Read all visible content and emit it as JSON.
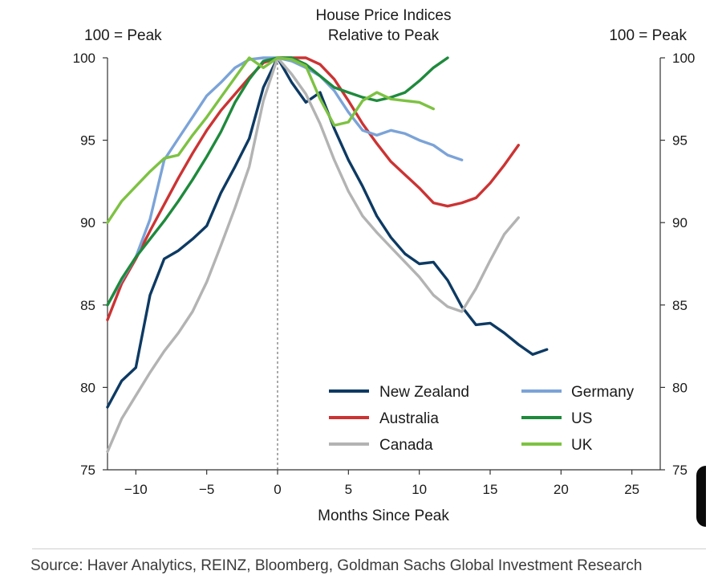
{
  "chart_data": {
    "type": "line",
    "title": [
      "House Price Indices",
      "Relative to Peak"
    ],
    "left_axis_label": "100 = Peak",
    "right_axis_label": "100 = Peak",
    "xlabel": "Months Since Peak",
    "xlim": [
      -12,
      27
    ],
    "ylim": [
      75,
      100
    ],
    "x_ticks": [
      -10,
      -5,
      0,
      5,
      10,
      15,
      20,
      25
    ],
    "x_tick_labels": [
      "−10",
      "−5",
      "0",
      "5",
      "10",
      "15",
      "20",
      "25"
    ],
    "y_ticks": [
      75,
      80,
      85,
      90,
      95,
      100
    ],
    "y_tick_labels": [
      "75",
      "80",
      "85",
      "90",
      "95",
      "100"
    ],
    "reference_line_x": 0,
    "legend_position": "lower-right",
    "series": [
      {
        "name": "New Zealand",
        "color": "#0d3a63",
        "x": [
          -12,
          -11,
          -10,
          -9,
          -8,
          -7,
          -6,
          -5,
          -4,
          -3,
          -2,
          -1,
          0,
          1,
          2,
          3,
          4,
          5,
          6,
          7,
          8,
          9,
          10,
          11,
          12,
          13,
          14,
          15,
          16,
          17,
          18,
          19
        ],
        "y": [
          78.8,
          80.4,
          81.2,
          85.6,
          87.8,
          88.3,
          89.0,
          89.8,
          91.8,
          93.4,
          95.1,
          98.2,
          100.0,
          98.5,
          97.3,
          97.9,
          95.7,
          93.8,
          92.2,
          90.4,
          89.1,
          88.1,
          87.5,
          87.6,
          86.5,
          84.9,
          83.8,
          83.9,
          83.3,
          82.6,
          82.0,
          82.3
        ]
      },
      {
        "name": "Australia",
        "color": "#cc3333",
        "x": [
          -12,
          -11,
          -10,
          -9,
          -8,
          -7,
          -6,
          -5,
          -4,
          -3,
          -2,
          -1,
          0,
          1,
          2,
          3,
          4,
          5,
          6,
          7,
          8,
          9,
          10,
          11,
          12,
          13,
          14,
          15,
          16,
          17
        ],
        "y": [
          84.1,
          86.3,
          87.8,
          89.5,
          91.1,
          92.7,
          94.2,
          95.6,
          96.8,
          97.8,
          98.8,
          99.7,
          100.0,
          100.0,
          100.0,
          99.6,
          98.7,
          97.4,
          96.0,
          94.8,
          93.7,
          92.9,
          92.1,
          91.2,
          91.0,
          91.2,
          91.5,
          92.4,
          93.5,
          94.7
        ]
      },
      {
        "name": "Canada",
        "color": "#b3b3b3",
        "x": [
          -12,
          -11,
          -10,
          -9,
          -8,
          -7,
          -6,
          -5,
          -4,
          -3,
          -2,
          -1,
          0,
          1,
          2,
          3,
          4,
          5,
          6,
          7,
          8,
          9,
          10,
          11,
          12,
          13,
          14,
          15,
          16,
          17
        ],
        "y": [
          76.1,
          78.1,
          79.5,
          80.9,
          82.2,
          83.3,
          84.6,
          86.4,
          88.6,
          90.9,
          93.4,
          97.4,
          100.0,
          99.0,
          97.8,
          96.0,
          93.8,
          91.9,
          90.4,
          89.4,
          88.5,
          87.6,
          86.7,
          85.6,
          84.9,
          84.6,
          86.0,
          87.7,
          89.3,
          90.3
        ]
      },
      {
        "name": "Germany",
        "color": "#7ba3d8",
        "x": [
          -12,
          -11,
          -10,
          -9,
          -8,
          -7,
          -6,
          -5,
          -4,
          -3,
          -2,
          -1,
          0,
          1,
          2,
          3,
          4,
          5,
          6,
          7,
          8,
          9,
          10,
          11,
          12,
          13
        ],
        "y": [
          85.0,
          86.5,
          87.9,
          90.2,
          93.8,
          95.1,
          96.4,
          97.7,
          98.5,
          99.4,
          99.9,
          100.0,
          100.0,
          99.8,
          99.4,
          98.9,
          98.0,
          96.7,
          95.6,
          95.3,
          95.6,
          95.4,
          95.0,
          94.7,
          94.1,
          93.8
        ]
      },
      {
        "name": "US",
        "color": "#1e8a3c",
        "x": [
          -12,
          -11,
          -10,
          -9,
          -8,
          -7,
          -6,
          -5,
          -4,
          -3,
          -2,
          -1,
          0,
          1,
          2,
          3,
          4,
          5,
          6,
          7,
          8,
          9,
          10,
          11,
          12
        ],
        "y": [
          85.0,
          86.6,
          87.9,
          89.0,
          90.1,
          91.3,
          92.6,
          94.0,
          95.5,
          97.3,
          98.7,
          99.8,
          100.0,
          100.0,
          99.6,
          98.9,
          98.2,
          97.9,
          97.6,
          97.4,
          97.6,
          97.9,
          98.6,
          99.4,
          100.0
        ]
      },
      {
        "name": "UK",
        "color": "#7dc242",
        "x": [
          -12,
          -11,
          -10,
          -9,
          -8,
          -7,
          -6,
          -5,
          -4,
          -3,
          -2,
          -1,
          0,
          1,
          2,
          3,
          4,
          5,
          6,
          7,
          8,
          9,
          10,
          11
        ],
        "y": [
          90.0,
          91.3,
          92.2,
          93.1,
          93.9,
          94.1,
          95.3,
          96.4,
          97.6,
          98.8,
          100.0,
          99.4,
          100.0,
          99.9,
          99.5,
          97.5,
          95.9,
          96.1,
          97.4,
          97.9,
          97.5,
          97.4,
          97.3,
          96.9
        ]
      }
    ]
  },
  "source_text": "Source: Haver Analytics, REINZ, Bloomberg, Goldman Sachs Global Investment Research"
}
